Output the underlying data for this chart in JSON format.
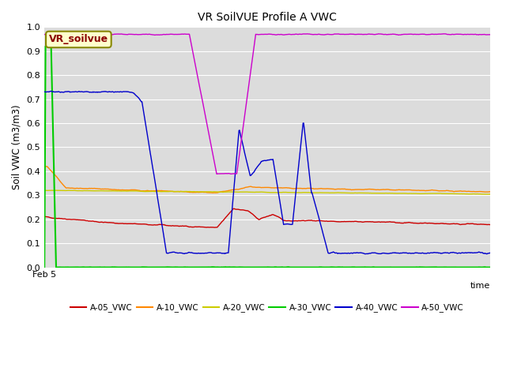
{
  "title": "VR SoilVUE Profile A VWC",
  "xlabel": "time",
  "ylabel": "Soil VWC (m3/m3)",
  "ylim": [
    0.0,
    1.0
  ],
  "background_color": "#dcdcdc",
  "annotation_text": "VR_soilvue",
  "annotation_box_facecolor": "#ffffcc",
  "annotation_box_edgecolor": "#888800",
  "annotation_text_color": "#8B0000",
  "series": {
    "A-05_VWC": {
      "color": "#cc0000",
      "lw": 1.0
    },
    "A-10_VWC": {
      "color": "#ff8800",
      "lw": 1.0
    },
    "A-20_VWC": {
      "color": "#cccc00",
      "lw": 1.0
    },
    "A-30_VWC": {
      "color": "#00cc00",
      "lw": 1.5
    },
    "A-40_VWC": {
      "color": "#0000cc",
      "lw": 1.0
    },
    "A-50_VWC": {
      "color": "#cc00cc",
      "lw": 1.0
    }
  },
  "n_points": 800,
  "seed": 42
}
